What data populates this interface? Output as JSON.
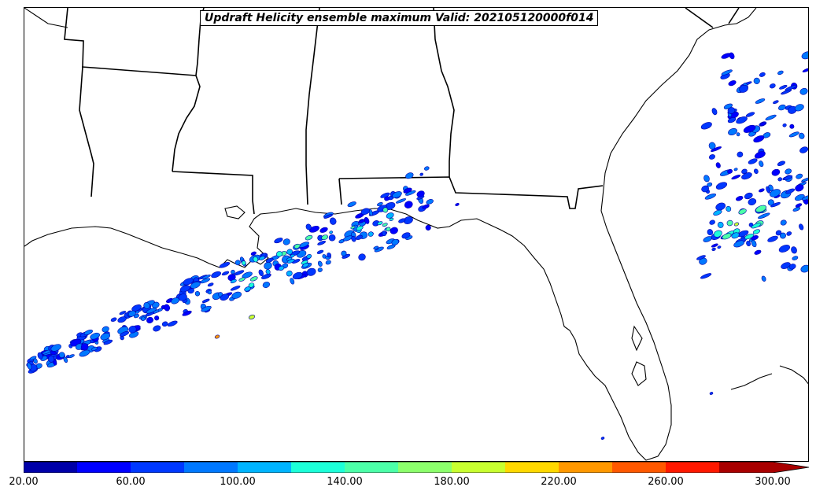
{
  "title": "Updraft Helicity ensemble maximum Valid: 202105120000f014",
  "colorbar": {
    "levels": [
      20,
      40,
      60,
      80,
      100,
      120,
      140,
      160,
      180,
      200,
      220,
      240,
      260,
      280,
      300
    ],
    "tick_labels": [
      "20.00",
      "60.00",
      "100.00",
      "140.00",
      "180.00",
      "220.00",
      "260.00",
      "300.00"
    ],
    "extend": "max",
    "colors": [
      "#0000a8",
      "#0000ff",
      "#0038ff",
      "#0078ff",
      "#00b4ff",
      "#1cffd8",
      "#4cffa8",
      "#8cff6c",
      "#c8ff30",
      "#ffd800",
      "#ff9800",
      "#ff5800",
      "#ff1800",
      "#a80000"
    ]
  },
  "layers": {
    "coastline": "#000000",
    "state_borders": "#000000",
    "background": "#ffffff"
  }
}
